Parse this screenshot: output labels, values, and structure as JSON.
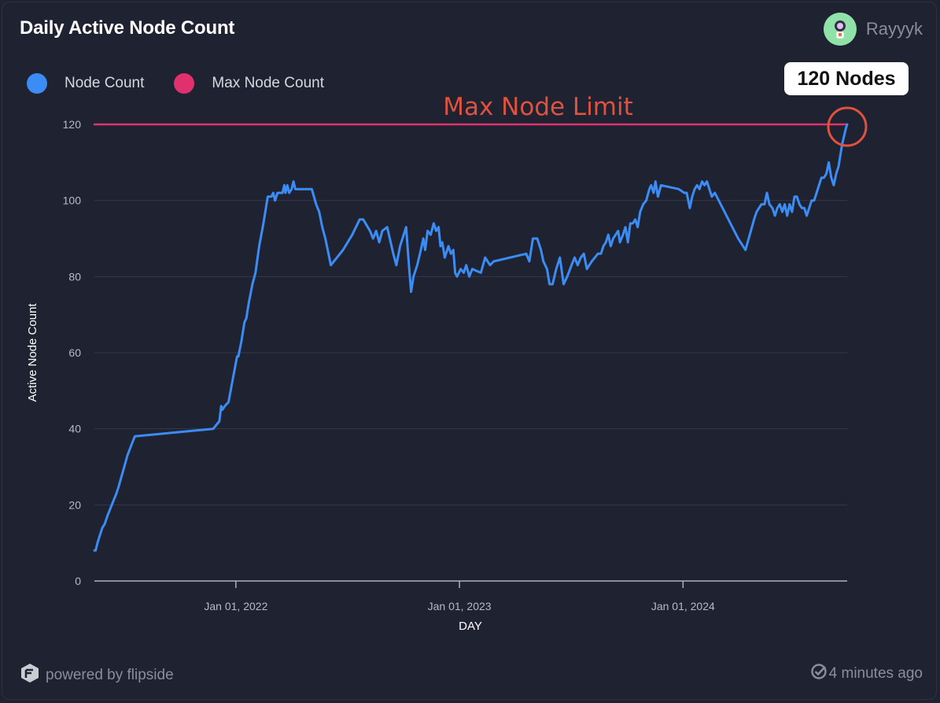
{
  "header": {
    "title": "Daily Active Node Count",
    "username": "Rayyyk",
    "avatar_icon": "astronaut-avatar-icon"
  },
  "annotation": {
    "badge": "120 Nodes",
    "limit_label": "Max Node Limit"
  },
  "footer": {
    "powered_by": "powered by flipside",
    "updated": "4 minutes ago"
  },
  "colors": {
    "node_count": "#3b8cf5",
    "max_node_count": "#e0306e",
    "annotation_red": "#e0523f"
  },
  "chart_data": {
    "type": "line",
    "title": "Daily Active Node Count",
    "xlabel": "DAY",
    "ylabel": "Active Node Count",
    "ylim": [
      0,
      120
    ],
    "yticks": [
      0,
      20,
      40,
      60,
      80,
      100,
      120
    ],
    "xlim": [
      "2021-05-15",
      "2024-09-25"
    ],
    "xticks": [
      {
        "date": "2022-01-01",
        "label": "Jan 01, 2022"
      },
      {
        "date": "2023-01-01",
        "label": "Jan 01, 2023"
      },
      {
        "date": "2024-01-01",
        "label": "Jan 01, 2024"
      }
    ],
    "legend_position": "top-left",
    "series": [
      {
        "name": "Node Count",
        "points": [
          [
            "2021-05-15",
            8
          ],
          [
            "2021-05-17",
            8
          ],
          [
            "2021-05-20",
            10
          ],
          [
            "2021-05-24",
            12
          ],
          [
            "2021-05-28",
            14
          ],
          [
            "2021-06-01",
            15
          ],
          [
            "2021-06-05",
            17
          ],
          [
            "2021-06-10",
            19
          ],
          [
            "2021-06-15",
            21
          ],
          [
            "2021-06-20",
            23
          ],
          [
            "2021-06-24",
            25
          ],
          [
            "2021-07-01",
            29
          ],
          [
            "2021-07-08",
            33
          ],
          [
            "2021-07-15",
            36
          ],
          [
            "2021-07-20",
            38
          ],
          [
            "2021-11-25",
            40
          ],
          [
            "2021-12-05",
            42
          ],
          [
            "2021-12-08",
            46
          ],
          [
            "2021-12-10",
            45
          ],
          [
            "2021-12-14",
            46
          ],
          [
            "2021-12-20",
            47
          ],
          [
            "2021-12-28",
            54
          ],
          [
            "2022-01-03",
            59
          ],
          [
            "2022-01-05",
            59
          ],
          [
            "2022-01-10",
            63
          ],
          [
            "2022-01-15",
            68
          ],
          [
            "2022-01-18",
            69
          ],
          [
            "2022-01-22",
            73
          ],
          [
            "2022-01-28",
            78
          ],
          [
            "2022-02-02",
            81
          ],
          [
            "2022-02-08",
            88
          ],
          [
            "2022-02-15",
            94
          ],
          [
            "2022-02-22",
            101
          ],
          [
            "2022-02-28",
            101
          ],
          [
            "2022-03-03",
            102
          ],
          [
            "2022-03-06",
            100
          ],
          [
            "2022-03-10",
            102
          ],
          [
            "2022-03-18",
            102
          ],
          [
            "2022-03-21",
            104
          ],
          [
            "2022-03-23",
            102
          ],
          [
            "2022-03-26",
            104
          ],
          [
            "2022-03-29",
            102
          ],
          [
            "2022-04-02",
            103
          ],
          [
            "2022-04-05",
            105
          ],
          [
            "2022-04-08",
            103
          ],
          [
            "2022-05-05",
            103
          ],
          [
            "2022-05-12",
            99
          ],
          [
            "2022-05-17",
            97
          ],
          [
            "2022-05-22",
            93
          ],
          [
            "2022-05-27",
            90
          ],
          [
            "2022-06-05",
            83
          ],
          [
            "2022-06-25",
            87
          ],
          [
            "2022-07-10",
            91
          ],
          [
            "2022-07-22",
            95
          ],
          [
            "2022-07-28",
            95
          ],
          [
            "2022-08-08",
            92
          ],
          [
            "2022-08-13",
            90
          ],
          [
            "2022-08-18",
            92
          ],
          [
            "2022-08-23",
            89
          ],
          [
            "2022-08-28",
            92
          ],
          [
            "2022-09-05",
            93
          ],
          [
            "2022-09-15",
            86
          ],
          [
            "2022-09-20",
            83
          ],
          [
            "2022-09-26",
            88
          ],
          [
            "2022-10-06",
            93
          ],
          [
            "2022-10-10",
            84
          ],
          [
            "2022-10-14",
            76
          ],
          [
            "2022-10-18",
            80
          ],
          [
            "2022-10-24",
            83
          ],
          [
            "2022-10-30",
            87
          ],
          [
            "2022-11-03",
            90
          ],
          [
            "2022-11-06",
            87
          ],
          [
            "2022-11-10",
            92
          ],
          [
            "2022-11-15",
            91
          ],
          [
            "2022-11-20",
            94
          ],
          [
            "2022-11-24",
            92
          ],
          [
            "2022-11-28",
            93
          ],
          [
            "2022-12-01",
            88
          ],
          [
            "2022-12-04",
            89
          ],
          [
            "2022-12-08",
            85
          ],
          [
            "2022-12-14",
            88
          ],
          [
            "2022-12-18",
            86
          ],
          [
            "2022-12-22",
            87
          ],
          [
            "2022-12-25",
            81
          ],
          [
            "2022-12-28",
            80
          ],
          [
            "2023-01-03",
            82
          ],
          [
            "2023-01-08",
            81
          ],
          [
            "2023-01-12",
            83
          ],
          [
            "2023-01-17",
            80
          ],
          [
            "2023-01-22",
            82
          ],
          [
            "2023-02-05",
            81
          ],
          [
            "2023-02-12",
            85
          ],
          [
            "2023-02-20",
            83
          ],
          [
            "2023-02-26",
            84
          ],
          [
            "2023-04-20",
            86
          ],
          [
            "2023-04-25",
            84
          ],
          [
            "2023-05-01",
            90
          ],
          [
            "2023-05-08",
            90
          ],
          [
            "2023-05-14",
            87
          ],
          [
            "2023-05-18",
            84
          ],
          [
            "2023-05-24",
            82
          ],
          [
            "2023-05-28",
            78
          ],
          [
            "2023-06-02",
            78
          ],
          [
            "2023-06-08",
            82
          ],
          [
            "2023-06-14",
            85
          ],
          [
            "2023-06-20",
            78
          ],
          [
            "2023-06-26",
            80
          ],
          [
            "2023-07-03",
            83
          ],
          [
            "2023-07-08",
            85
          ],
          [
            "2023-07-13",
            83
          ],
          [
            "2023-07-18",
            85
          ],
          [
            "2023-07-23",
            86
          ],
          [
            "2023-07-28",
            82
          ],
          [
            "2023-08-05",
            84
          ],
          [
            "2023-08-10",
            85
          ],
          [
            "2023-08-15",
            86
          ],
          [
            "2023-08-20",
            86
          ],
          [
            "2023-08-24",
            88
          ],
          [
            "2023-08-28",
            89
          ],
          [
            "2023-09-01",
            91
          ],
          [
            "2023-09-05",
            88
          ],
          [
            "2023-09-09",
            90
          ],
          [
            "2023-09-13",
            91
          ],
          [
            "2023-09-17",
            92
          ],
          [
            "2023-09-20",
            89
          ],
          [
            "2023-09-25",
            91
          ],
          [
            "2023-09-29",
            93
          ],
          [
            "2023-10-03",
            89
          ],
          [
            "2023-10-07",
            94
          ],
          [
            "2023-10-11",
            94
          ],
          [
            "2023-10-15",
            95
          ],
          [
            "2023-10-19",
            93
          ],
          [
            "2023-10-23",
            97
          ],
          [
            "2023-10-28",
            99
          ],
          [
            "2023-11-02",
            100
          ],
          [
            "2023-11-07",
            103
          ],
          [
            "2023-11-10",
            104
          ],
          [
            "2023-11-14",
            102
          ],
          [
            "2023-11-17",
            105
          ],
          [
            "2023-11-21",
            101
          ],
          [
            "2023-11-26",
            104
          ],
          [
            "2023-12-25",
            103
          ],
          [
            "2024-01-03",
            102
          ],
          [
            "2024-01-07",
            102
          ],
          [
            "2024-01-12",
            98
          ],
          [
            "2024-01-16",
            101
          ],
          [
            "2024-01-20",
            103
          ],
          [
            "2024-01-24",
            104
          ],
          [
            "2024-01-28",
            103
          ],
          [
            "2024-02-01",
            105
          ],
          [
            "2024-02-05",
            104
          ],
          [
            "2024-02-09",
            105
          ],
          [
            "2024-02-13",
            103
          ],
          [
            "2024-02-17",
            101
          ],
          [
            "2024-02-22",
            102
          ],
          [
            "2024-03-12",
            96
          ],
          [
            "2024-03-31",
            90
          ],
          [
            "2024-04-12",
            87
          ],
          [
            "2024-04-19",
            91
          ],
          [
            "2024-04-26",
            95
          ],
          [
            "2024-04-30",
            97
          ],
          [
            "2024-05-04",
            98
          ],
          [
            "2024-05-08",
            99
          ],
          [
            "2024-05-13",
            99
          ],
          [
            "2024-05-17",
            102
          ],
          [
            "2024-05-21",
            99
          ],
          [
            "2024-05-26",
            98
          ],
          [
            "2024-05-30",
            96
          ],
          [
            "2024-06-03",
            98
          ],
          [
            "2024-06-07",
            99
          ],
          [
            "2024-06-11",
            97
          ],
          [
            "2024-06-15",
            99
          ],
          [
            "2024-06-19",
            96
          ],
          [
            "2024-06-23",
            99
          ],
          [
            "2024-06-27",
            97
          ],
          [
            "2024-07-01",
            101
          ],
          [
            "2024-07-05",
            101
          ],
          [
            "2024-07-09",
            99
          ],
          [
            "2024-07-13",
            98
          ],
          [
            "2024-07-17",
            98
          ],
          [
            "2024-07-21",
            96
          ],
          [
            "2024-07-25",
            98
          ],
          [
            "2024-07-29",
            100
          ],
          [
            "2024-08-02",
            100
          ],
          [
            "2024-08-06",
            102
          ],
          [
            "2024-08-10",
            104
          ],
          [
            "2024-08-14",
            106
          ],
          [
            "2024-08-18",
            106
          ],
          [
            "2024-08-22",
            107
          ],
          [
            "2024-08-26",
            110
          ],
          [
            "2024-08-30",
            106
          ],
          [
            "2024-09-03",
            104
          ],
          [
            "2024-09-07",
            107
          ],
          [
            "2024-09-11",
            109
          ],
          [
            "2024-09-14",
            112
          ],
          [
            "2024-09-17",
            115
          ],
          [
            "2024-09-20",
            117
          ],
          [
            "2024-09-23",
            119
          ],
          [
            "2024-09-25",
            120
          ]
        ]
      },
      {
        "name": "Max Node Count",
        "points": [
          [
            "2021-05-15",
            120
          ],
          [
            "2024-09-25",
            120
          ]
        ]
      }
    ]
  }
}
